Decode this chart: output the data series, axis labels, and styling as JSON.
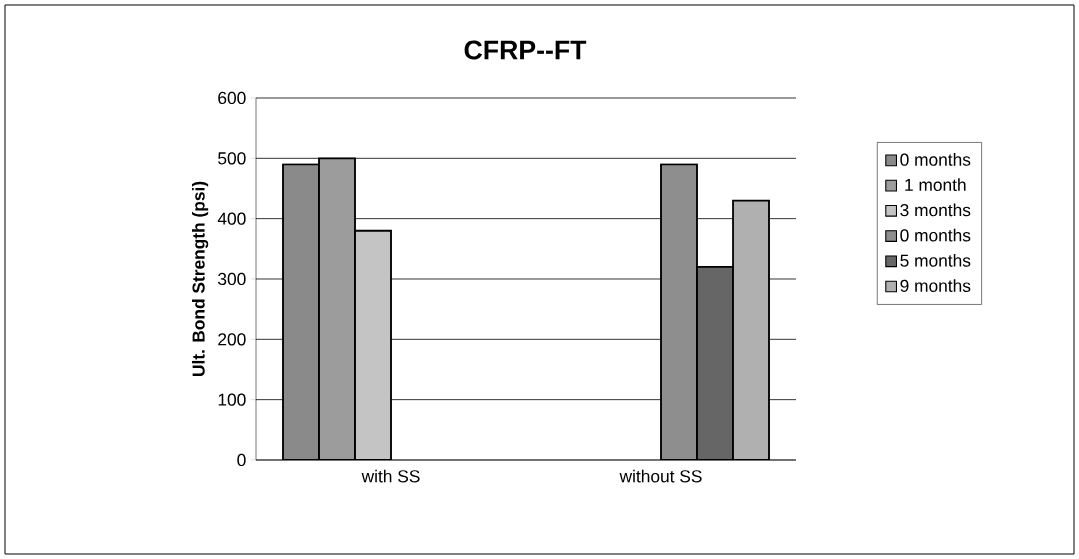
{
  "chart_data": {
    "type": "bar",
    "title": "CFRP--FT",
    "ylabel": "Ult. Bond Strength (psi)",
    "categories": [
      "with SS",
      "without SS"
    ],
    "series": [
      {
        "name": "0 months",
        "color": "#8a8a8a",
        "values": [
          490,
          null
        ]
      },
      {
        "name": "1 month",
        "color": "#9c9c9c",
        "values": [
          500,
          null
        ]
      },
      {
        "name": "3 months",
        "color": "#c4c4c4",
        "values": [
          380,
          null
        ]
      },
      {
        "name": "0 months",
        "color": "#8e8e8e",
        "values": [
          null,
          490
        ]
      },
      {
        "name": "5 months",
        "color": "#666666",
        "values": [
          null,
          320
        ]
      },
      {
        "name": "9 months",
        "color": "#b0b0b0",
        "values": [
          null,
          430
        ]
      }
    ],
    "ylim": [
      0,
      600
    ],
    "yticks": [
      0,
      100,
      200,
      300,
      400,
      500,
      600
    ],
    "grid": "y",
    "legend": "right"
  }
}
